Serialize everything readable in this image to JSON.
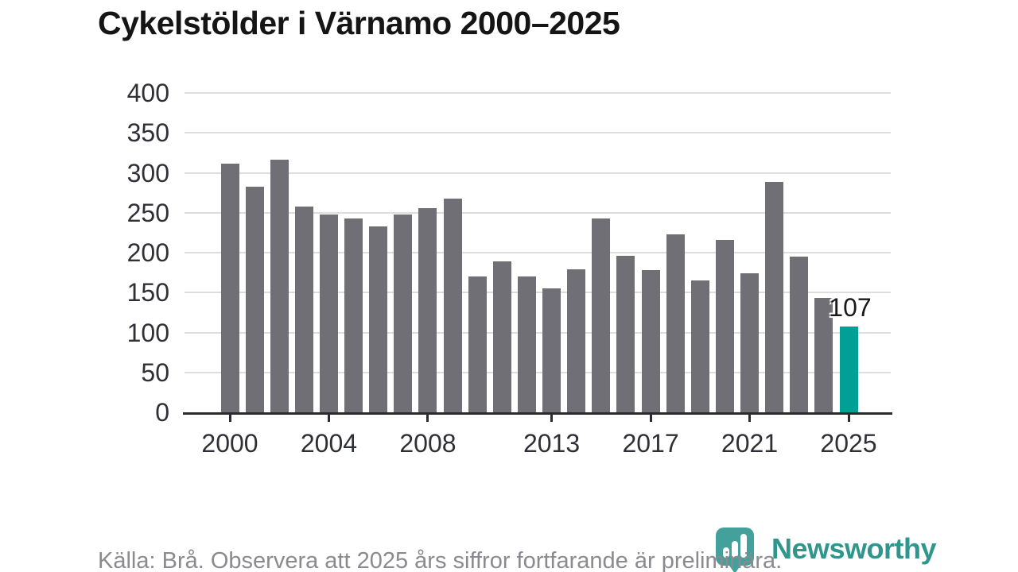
{
  "title": "Cykelstölder i Värnamo 2000–2025",
  "footer": {
    "source_note": "Källa: Brå. Observera att 2025 års siffror fortfarande är preliminära."
  },
  "logo": {
    "name": "Newsworthy",
    "icon": "bar-chart-bubble-icon"
  },
  "colors": {
    "bar": "#6F6F75",
    "highlight": "#00A096",
    "grid": "#DDDDDD",
    "axis": "#2B2B2B",
    "tick_label": "#2F3036",
    "title": "#151515",
    "annotation": "#1A1A1A",
    "footer_text": "#8A8A90",
    "brand_text": "#2F968E",
    "brand_icon": "#44A09A"
  },
  "chart_data": {
    "type": "bar",
    "title": "Cykelstölder i Värnamo 2000–2025",
    "xlabel": "",
    "ylabel": "",
    "categories": [
      2000,
      2001,
      2002,
      2003,
      2004,
      2005,
      2006,
      2007,
      2008,
      2009,
      2010,
      2011,
      2012,
      2013,
      2014,
      2015,
      2016,
      2017,
      2018,
      2019,
      2020,
      2021,
      2022,
      2023,
      2024,
      2025
    ],
    "values": [
      311,
      283,
      316,
      258,
      248,
      243,
      233,
      248,
      256,
      268,
      170,
      189,
      170,
      155,
      179,
      243,
      196,
      178,
      223,
      165,
      216,
      174,
      289,
      195,
      143,
      107
    ],
    "highlight_index": 25,
    "highlight_label": "107",
    "ylim": [
      0,
      400
    ],
    "y_ticks": [
      0,
      50,
      100,
      150,
      200,
      250,
      300,
      350,
      400
    ],
    "x_tick_years": [
      2000,
      2004,
      2008,
      2013,
      2017,
      2021,
      2025
    ],
    "grid": true,
    "legend": false,
    "gridline_orientation": "horizontal"
  }
}
